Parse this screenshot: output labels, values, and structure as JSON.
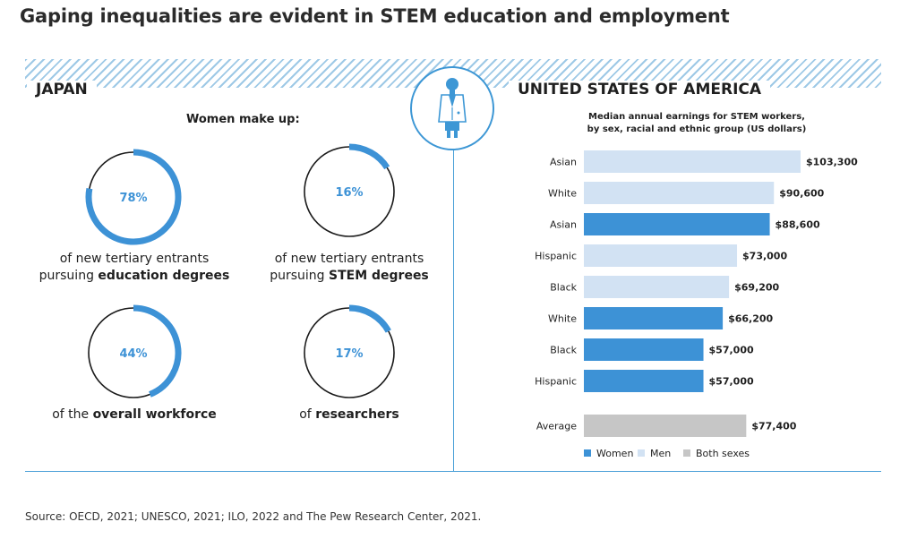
{
  "title": "Gaping inequalities are evident in STEM education and employment",
  "japan": {
    "label": "JAPAN",
    "heading": "Women make up:",
    "stats": [
      {
        "percent": 78,
        "percent_label": "78%",
        "caption_pre": "of new tertiary entrants",
        "caption_line2_pre": "pursuing ",
        "caption_bold": "education degrees",
        "caption_post": ""
      },
      {
        "percent": 16,
        "percent_label": "16%",
        "caption_pre": "of new tertiary entrants",
        "caption_line2_pre": "pursuing ",
        "caption_bold": "STEM degrees",
        "caption_post": ""
      },
      {
        "percent": 44,
        "percent_label": "44%",
        "caption_pre": "",
        "caption_line2_pre": "of the ",
        "caption_bold": "overall workforce",
        "caption_post": ""
      },
      {
        "percent": 17,
        "percent_label": "17%",
        "caption_pre": "",
        "caption_line2_pre": "of ",
        "caption_bold": "researchers",
        "caption_post": ""
      }
    ]
  },
  "usa": {
    "label": "UNITED STATES OF AMERICA",
    "subtitle_line1": "Median annual earnings for STEM workers,",
    "subtitle_line2": "by sex, racial and ethnic group (US dollars)"
  },
  "chart_data": {
    "type": "bar",
    "orientation": "horizontal",
    "title": "Median annual earnings for STEM workers, by sex, racial and ethnic group (US dollars)",
    "categories": [
      "Asian",
      "White",
      "Asian",
      "Hispanic",
      "Black",
      "White",
      "Black",
      "Hispanic",
      "Average"
    ],
    "values": [
      103300,
      90600,
      88600,
      73000,
      69200,
      66200,
      57000,
      57000,
      77400
    ],
    "value_labels": [
      "$103,300",
      "$90,600",
      "$88,600",
      "$73,000",
      "$69,200",
      "$66,200",
      "$57,000",
      "$57,000",
      "$77,400"
    ],
    "groups": [
      "Men",
      "Men",
      "Women",
      "Men",
      "Men",
      "Women",
      "Women",
      "Women",
      "Both sexes"
    ],
    "xlim": [
      0,
      103300
    ],
    "legend": [
      {
        "name": "Women",
        "color": "#3d92d6"
      },
      {
        "name": "Men",
        "color": "#d2e2f3"
      },
      {
        "name": "Both sexes",
        "color": "#c6c6c6"
      }
    ],
    "legend_position": "bottom"
  },
  "colors": {
    "accent": "#3d97d5",
    "women": "#3d92d6",
    "men": "#d2e2f3",
    "both": "#c6c6c6",
    "donut_track": "#1a1a1a"
  },
  "source": "Source: OECD, 2021; UNESCO, 2021; ILO, 2022 and The Pew Research Center, 2021."
}
